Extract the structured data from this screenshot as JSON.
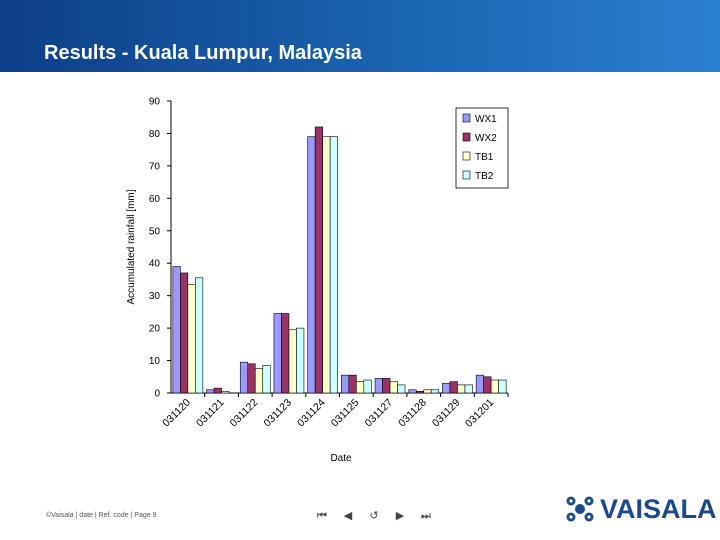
{
  "header": {
    "title": "Results - Kuala Lumpur, Malaysia"
  },
  "footer": {
    "text": "©Vaisala | date | Ref. code | Page 9"
  },
  "nav": {
    "first": "⏮",
    "prev": "◀",
    "return": "↺",
    "next": "▶",
    "last": "⏭"
  },
  "logo": {
    "text": "VAISALA",
    "color": "#1b4a8c"
  },
  "chart_data": {
    "type": "bar",
    "title": "",
    "xlabel": "Date",
    "ylabel": "Accumulated rainfall [mm]",
    "ylim": [
      0,
      90
    ],
    "yticks": [
      0,
      10,
      20,
      30,
      40,
      50,
      60,
      70,
      80,
      90
    ],
    "grid": false,
    "legend_position": "top-right",
    "categories": [
      "031120",
      "031121",
      "031122",
      "031123",
      "031124",
      "031125",
      "031127",
      "031128",
      "031129",
      "031201"
    ],
    "series": [
      {
        "name": "WX1",
        "color": "#9999ff",
        "values": [
          39,
          1,
          9.5,
          24.5,
          79,
          5.5,
          4.5,
          1,
          3,
          5.5
        ]
      },
      {
        "name": "WX2",
        "color": "#993366",
        "values": [
          37,
          1.5,
          9,
          24.5,
          82,
          5.5,
          4.5,
          0.5,
          3.5,
          5
        ]
      },
      {
        "name": "TB1",
        "color": "#ffffcc",
        "values": [
          33.5,
          0.5,
          7.5,
          19.5,
          79,
          3.5,
          3.5,
          1,
          2.5,
          4
        ]
      },
      {
        "name": "TB2",
        "color": "#ccffff",
        "values": [
          35.5,
          0,
          8.5,
          20,
          79,
          4,
          2.5,
          1,
          2.5,
          4
        ]
      }
    ]
  }
}
